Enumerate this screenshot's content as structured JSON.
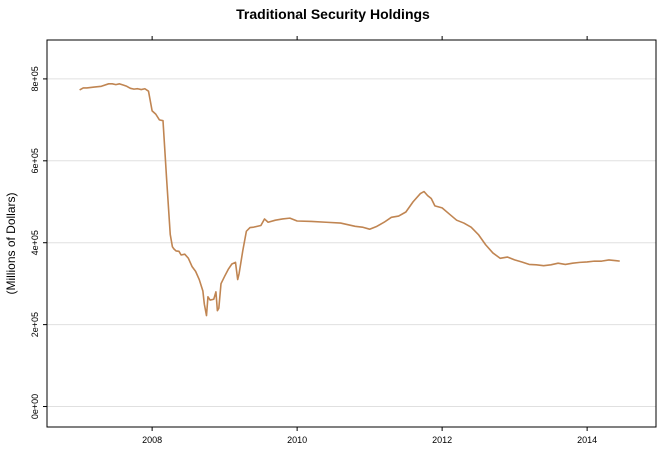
{
  "chart_data": {
    "type": "line",
    "title": "Traditional Security Holdings",
    "xlabel": "",
    "ylabel": "(Millions of Dollars)",
    "xlim": [
      2006.55,
      2014.95
    ],
    "ylim": [
      -50000,
      895000
    ],
    "grid": {
      "horizontal": true,
      "vertical": false
    },
    "x_ticks": [
      {
        "value": 2008,
        "label": "2008"
      },
      {
        "value": 2010,
        "label": "2010"
      },
      {
        "value": 2012,
        "label": "2012"
      },
      {
        "value": 2014,
        "label": "2014"
      }
    ],
    "y_ticks": [
      {
        "value": 0,
        "label": "0e+00"
      },
      {
        "value": 200000,
        "label": "2e+05"
      },
      {
        "value": 400000,
        "label": "4e+05"
      },
      {
        "value": 600000,
        "label": "6e+05"
      },
      {
        "value": 800000,
        "label": "8e+05"
      }
    ],
    "colors": {
      "series": "#c08552",
      "grid": "#e0e0e0",
      "frame": "#000000"
    },
    "series": [
      {
        "x": [
          2007.0,
          2007.05,
          2007.1,
          2007.2,
          2007.3,
          2007.4,
          2007.45,
          2007.5,
          2007.55,
          2007.6,
          2007.65,
          2007.7,
          2007.75,
          2007.8,
          2007.85,
          2007.9,
          2007.95,
          2008.0,
          2008.05,
          2008.1,
          2008.15,
          2008.2,
          2008.25,
          2008.28,
          2008.3,
          2008.33,
          2008.37,
          2008.4,
          2008.45,
          2008.5,
          2008.55,
          2008.6,
          2008.65,
          2008.7,
          2008.72,
          2008.75,
          2008.77,
          2008.8,
          2008.85,
          2008.88,
          2008.9,
          2008.92,
          2008.95,
          2009.0,
          2009.05,
          2009.1,
          2009.15,
          2009.18,
          2009.2,
          2009.25,
          2009.3,
          2009.35,
          2009.4,
          2009.5,
          2009.55,
          2009.6,
          2009.7,
          2009.8,
          2009.9,
          2010.0,
          2010.2,
          2010.4,
          2010.6,
          2010.8,
          2010.9,
          2011.0,
          2011.1,
          2011.2,
          2011.3,
          2011.4,
          2011.5,
          2011.6,
          2011.7,
          2011.75,
          2011.8,
          2011.85,
          2011.9,
          2012.0,
          2012.1,
          2012.2,
          2012.3,
          2012.4,
          2012.5,
          2012.6,
          2012.7,
          2012.8,
          2012.9,
          2013.0,
          2013.1,
          2013.2,
          2013.3,
          2013.4,
          2013.5,
          2013.6,
          2013.7,
          2013.8,
          2013.9,
          2014.0,
          2014.1,
          2014.2,
          2014.3,
          2014.4,
          2014.45
        ],
        "y": [
          773000,
          778000,
          778000,
          780000,
          782000,
          788000,
          788000,
          786000,
          788000,
          785000,
          782000,
          777000,
          775000,
          776000,
          774000,
          776000,
          770000,
          722000,
          714000,
          700000,
          698000,
          555000,
          420000,
          390000,
          385000,
          380000,
          379000,
          370000,
          372000,
          362000,
          342000,
          330000,
          310000,
          282000,
          250000,
          222000,
          268000,
          260000,
          262000,
          280000,
          234000,
          240000,
          300000,
          318000,
          335000,
          348000,
          352000,
          310000,
          325000,
          380000,
          428000,
          437000,
          438000,
          442000,
          458000,
          450000,
          455000,
          458000,
          460000,
          453000,
          452000,
          450000,
          448000,
          440000,
          438000,
          433000,
          440000,
          450000,
          462000,
          465000,
          475000,
          500000,
          520000,
          525000,
          515000,
          508000,
          490000,
          485000,
          470000,
          455000,
          448000,
          438000,
          420000,
          395000,
          375000,
          362000,
          365000,
          358000,
          353000,
          347000,
          346000,
          344000,
          346000,
          350000,
          347000,
          350000,
          352000,
          353000,
          355000,
          355000,
          358000,
          356000,
          355000
        ]
      }
    ]
  }
}
